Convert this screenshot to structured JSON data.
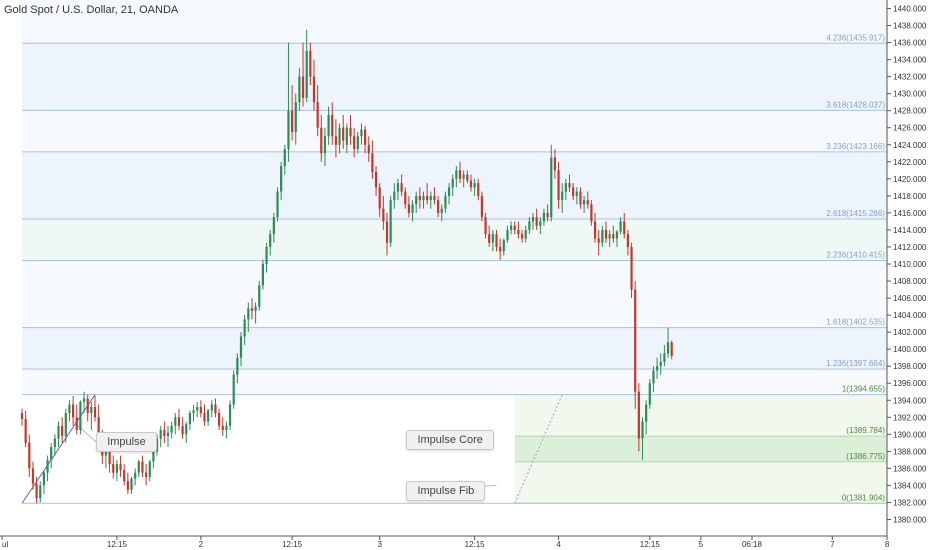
{
  "chart_data": {
    "type": "candlestick",
    "title": "Gold Spot / U.S. Dollar, 21, OANDA",
    "ylim": [
      1379,
      1441
    ],
    "y_ticks": [
      1380,
      1382,
      1384,
      1386,
      1388,
      1390,
      1392,
      1394,
      1396,
      1398,
      1400,
      1402,
      1404,
      1406,
      1408,
      1410,
      1412,
      1414,
      1416,
      1418,
      1420,
      1422,
      1424,
      1426,
      1428,
      1430,
      1432,
      1434,
      1436,
      1438,
      1440
    ],
    "y_tick_labels": [
      "1380.000",
      "1382.000",
      "1384.000",
      "1386.000",
      "1388.000",
      "1390.000",
      "1392.000",
      "1394.000",
      "1396.000",
      "1398.000",
      "1400.000",
      "1402.000",
      "1404.000",
      "1406.000",
      "1408.000",
      "1410.000",
      "1412.000",
      "1414.000",
      "1416.000",
      "1418.000",
      "1420.000",
      "1422.000",
      "1424.000",
      "1426.000",
      "1428.000",
      "1430.000",
      "1432.000",
      "1434.000",
      "1436.000",
      "1438.000",
      "1440.000"
    ],
    "x_ticks": [
      {
        "label": "ul",
        "bar": 0
      },
      {
        "label": "12:15",
        "bar": 26
      },
      {
        "label": "2",
        "bar": 49
      },
      {
        "label": "12:15",
        "bar": 74
      },
      {
        "label": "3",
        "bar": 98
      },
      {
        "label": "12:15",
        "bar": 124
      },
      {
        "label": "4",
        "bar": 147
      },
      {
        "label": "12:15",
        "bar": 172
      },
      {
        "label": "5",
        "bar": 186
      },
      {
        "label": "06:18",
        "bar": 200
      },
      {
        "label": "7",
        "bar": 222
      },
      {
        "label": "8",
        "bar": 237
      }
    ],
    "fib_levels": [
      {
        "ratio": "4.236",
        "value": 1435.917,
        "label": "4.236(1435.917)"
      },
      {
        "ratio": "3.618",
        "value": 1428.037,
        "label": "3.618(1428.037)"
      },
      {
        "ratio": "3.236",
        "value": 1423.166,
        "label": "3.236(1423.166)"
      },
      {
        "ratio": "2.618",
        "value": 1415.286,
        "label": "2.618(1415.286)"
      },
      {
        "ratio": "2.236",
        "value": 1410.415,
        "label": "2.236(1410.415)"
      },
      {
        "ratio": "1.618",
        "value": 1402.535,
        "label": "1.618(1402.535)"
      },
      {
        "ratio": "1.236",
        "value": 1397.664,
        "label": "1.236(1397.664)"
      }
    ],
    "fib_box_levels": [
      {
        "value": 1394.655,
        "ratio_label": "1",
        "value_label": "(1394.655)"
      },
      {
        "value": 1389.784,
        "ratio_label": "",
        "value_label": "(1389.784)"
      },
      {
        "value": 1386.775,
        "ratio_label": "",
        "value_label": "(1386.775)"
      },
      {
        "value": 1381.904,
        "ratio_label": "0",
        "value_label": "(1381.904)"
      }
    ],
    "impulse_line": {
      "from": [
        0,
        1381.904
      ],
      "to": [
        20,
        1394.655
      ]
    },
    "fib_trend_line": {
      "from": [
        135,
        1381.904
      ],
      "to": [
        148,
        1394.655
      ]
    },
    "box_start_bar": 135,
    "annotations": [
      {
        "text": "Impulse",
        "bar": 28,
        "value": 1389.1
      },
      {
        "text": "Impulse Core",
        "bar": 113,
        "value": 1389.3
      },
      {
        "text": "Impulse Fib",
        "bar": 113,
        "value": 1383.3
      }
    ],
    "candles": [
      [
        1392.5,
        1393.0,
        1391.0,
        1391.8
      ],
      [
        1391.8,
        1392.8,
        1388.5,
        1389.0
      ],
      [
        1389.0,
        1390.0,
        1385.0,
        1386.0
      ],
      [
        1386.0,
        1386.8,
        1383.5,
        1384.2
      ],
      [
        1384.2,
        1385.0,
        1381.9,
        1382.5
      ],
      [
        1382.5,
        1384.5,
        1382.0,
        1384.0
      ],
      [
        1384.0,
        1385.8,
        1383.0,
        1385.5
      ],
      [
        1385.5,
        1387.5,
        1384.5,
        1387.0
      ],
      [
        1387.0,
        1389.0,
        1386.0,
        1388.5
      ],
      [
        1388.5,
        1390.0,
        1387.5,
        1389.5
      ],
      [
        1389.5,
        1391.5,
        1388.5,
        1391.0
      ],
      [
        1391.0,
        1392.0,
        1389.0,
        1389.8
      ],
      [
        1389.8,
        1393.0,
        1389.0,
        1392.5
      ],
      [
        1392.5,
        1394.0,
        1391.5,
        1393.5
      ],
      [
        1393.5,
        1394.5,
        1391.0,
        1392.0
      ],
      [
        1392.0,
        1393.5,
        1390.0,
        1390.5
      ],
      [
        1390.5,
        1394.0,
        1390.0,
        1393.8
      ],
      [
        1393.8,
        1395.0,
        1392.5,
        1394.2
      ],
      [
        1394.2,
        1394.66,
        1391.5,
        1392.5
      ],
      [
        1392.5,
        1393.8,
        1390.5,
        1393.2
      ],
      [
        1393.2,
        1394.5,
        1391.5,
        1392.0
      ],
      [
        1392.0,
        1393.5,
        1389.0,
        1389.5
      ],
      [
        1389.5,
        1390.5,
        1386.5,
        1387.5
      ],
      [
        1387.5,
        1389.0,
        1386.0,
        1388.0
      ],
      [
        1388.0,
        1389.0,
        1385.5,
        1386.5
      ],
      [
        1386.5,
        1387.5,
        1384.8,
        1385.5
      ],
      [
        1385.5,
        1387.0,
        1384.5,
        1386.5
      ],
      [
        1386.5,
        1387.5,
        1385.0,
        1385.8
      ],
      [
        1385.8,
        1386.5,
        1384.0,
        1384.5
      ],
      [
        1384.5,
        1385.5,
        1383.0,
        1383.5
      ],
      [
        1383.5,
        1385.0,
        1383.0,
        1384.8
      ],
      [
        1384.8,
        1386.0,
        1384.0,
        1385.5
      ],
      [
        1385.5,
        1387.0,
        1385.0,
        1386.8
      ],
      [
        1386.8,
        1387.5,
        1385.0,
        1385.5
      ],
      [
        1385.5,
        1386.5,
        1384.0,
        1385.0
      ],
      [
        1385.0,
        1387.0,
        1384.5,
        1386.8
      ],
      [
        1386.8,
        1388.5,
        1386.0,
        1388.0
      ],
      [
        1388.0,
        1390.0,
        1387.5,
        1389.5
      ],
      [
        1389.5,
        1391.0,
        1388.5,
        1390.5
      ],
      [
        1390.5,
        1391.5,
        1389.0,
        1389.8
      ],
      [
        1389.8,
        1391.0,
        1388.5,
        1390.2
      ],
      [
        1390.2,
        1391.5,
        1389.5,
        1391.0
      ],
      [
        1391.0,
        1392.5,
        1390.0,
        1392.0
      ],
      [
        1392.0,
        1393.0,
        1390.5,
        1391.0
      ],
      [
        1391.0,
        1392.0,
        1389.5,
        1390.0
      ],
      [
        1390.0,
        1391.5,
        1389.0,
        1391.2
      ],
      [
        1391.2,
        1392.8,
        1390.5,
        1392.5
      ],
      [
        1392.5,
        1393.5,
        1391.5,
        1392.8
      ],
      [
        1392.8,
        1393.8,
        1392.0,
        1393.2
      ],
      [
        1393.2,
        1394.0,
        1392.0,
        1392.5
      ],
      [
        1392.5,
        1393.5,
        1391.0,
        1391.5
      ],
      [
        1391.5,
        1393.0,
        1391.0,
        1392.8
      ],
      [
        1392.8,
        1394.0,
        1392.0,
        1393.5
      ],
      [
        1393.5,
        1394.2,
        1392.0,
        1392.5
      ],
      [
        1392.5,
        1393.0,
        1390.5,
        1391.0
      ],
      [
        1391.0,
        1392.0,
        1389.8,
        1390.5
      ],
      [
        1390.5,
        1391.5,
        1389.5,
        1391.0
      ],
      [
        1391.0,
        1394.0,
        1390.5,
        1393.5
      ],
      [
        1393.5,
        1397.5,
        1393.0,
        1397.0
      ],
      [
        1397.0,
        1399.5,
        1396.0,
        1399.0
      ],
      [
        1399.0,
        1402.0,
        1398.0,
        1401.5
      ],
      [
        1401.5,
        1404.0,
        1400.5,
        1403.5
      ],
      [
        1403.5,
        1405.5,
        1402.0,
        1404.8
      ],
      [
        1404.8,
        1406.0,
        1403.5,
        1404.5
      ],
      [
        1404.5,
        1405.5,
        1403.0,
        1405.0
      ],
      [
        1405.0,
        1408.0,
        1404.5,
        1407.5
      ],
      [
        1407.5,
        1410.5,
        1407.0,
        1410.0
      ],
      [
        1410.0,
        1412.5,
        1409.0,
        1412.0
      ],
      [
        1412.0,
        1414.0,
        1411.0,
        1413.5
      ],
      [
        1413.5,
        1416.0,
        1412.5,
        1415.5
      ],
      [
        1415.5,
        1419.0,
        1415.0,
        1418.5
      ],
      [
        1418.5,
        1422.0,
        1417.5,
        1421.5
      ],
      [
        1421.5,
        1424.0,
        1420.5,
        1423.5
      ],
      [
        1423.5,
        1436.0,
        1422.0,
        1428.0
      ],
      [
        1428.0,
        1431.0,
        1424.5,
        1425.5
      ],
      [
        1425.5,
        1430.0,
        1424.0,
        1429.0
      ],
      [
        1429.0,
        1433.0,
        1428.0,
        1432.0
      ],
      [
        1432.0,
        1436.0,
        1428.5,
        1429.5
      ],
      [
        1429.5,
        1437.5,
        1429.0,
        1435.0
      ],
      [
        1435.0,
        1436.0,
        1431.0,
        1432.0
      ],
      [
        1432.0,
        1434.0,
        1428.0,
        1429.0
      ],
      [
        1429.0,
        1431.0,
        1425.0,
        1426.0
      ],
      [
        1426.0,
        1427.5,
        1422.0,
        1423.0
      ],
      [
        1423.0,
        1426.0,
        1421.5,
        1425.0
      ],
      [
        1425.0,
        1428.5,
        1424.0,
        1427.5
      ],
      [
        1427.5,
        1429.0,
        1424.0,
        1425.0
      ],
      [
        1425.0,
        1427.0,
        1422.5,
        1424.0
      ],
      [
        1424.0,
        1426.5,
        1423.0,
        1426.0
      ],
      [
        1426.0,
        1427.5,
        1423.5,
        1424.5
      ],
      [
        1424.0,
        1426.5,
        1423.0,
        1426.0
      ],
      [
        1426.0,
        1427.5,
        1424.0,
        1425.0
      ],
      [
        1425.0,
        1426.0,
        1422.5,
        1423.5
      ],
      [
        1423.5,
        1425.5,
        1423.0,
        1425.0
      ],
      [
        1425.0,
        1426.5,
        1424.0,
        1425.8
      ],
      [
        1425.8,
        1426.2,
        1423.0,
        1424.0
      ],
      [
        1424.0,
        1425.0,
        1422.0,
        1423.0
      ],
      [
        1423.0,
        1424.5,
        1420.0,
        1420.8
      ],
      [
        1420.8,
        1421.5,
        1418.0,
        1419.0
      ],
      [
        1419.0,
        1419.5,
        1415.5,
        1416.5
      ],
      [
        1416.5,
        1418.0,
        1414.0,
        1415.0
      ],
      [
        1415.0,
        1416.0,
        1411.0,
        1412.5
      ],
      [
        1412.5,
        1418.0,
        1412.0,
        1417.5
      ],
      [
        1417.5,
        1419.5,
        1416.5,
        1418.5
      ],
      [
        1418.5,
        1420.0,
        1417.5,
        1419.5
      ],
      [
        1419.5,
        1420.5,
        1418.0,
        1418.5
      ],
      [
        1418.5,
        1419.0,
        1416.5,
        1417.0
      ],
      [
        1417.0,
        1418.0,
        1415.5,
        1416.0
      ],
      [
        1416.0,
        1417.5,
        1415.0,
        1417.0
      ],
      [
        1417.0,
        1418.5,
        1416.0,
        1418.0
      ],
      [
        1418.0,
        1419.0,
        1416.5,
        1417.5
      ],
      [
        1417.5,
        1418.5,
        1416.5,
        1418.0
      ],
      [
        1418.0,
        1419.5,
        1417.0,
        1417.5
      ],
      [
        1417.5,
        1418.5,
        1416.5,
        1418.0
      ],
      [
        1418.0,
        1419.0,
        1417.0,
        1417.5
      ],
      [
        1417.5,
        1418.0,
        1415.5,
        1416.0
      ],
      [
        1416.0,
        1417.0,
        1415.0,
        1416.5
      ],
      [
        1416.5,
        1418.5,
        1416.0,
        1418.0
      ],
      [
        1418.0,
        1419.5,
        1417.0,
        1419.0
      ],
      [
        1419.0,
        1420.5,
        1418.0,
        1420.0
      ],
      [
        1420.0,
        1421.5,
        1419.0,
        1421.0
      ],
      [
        1421.0,
        1422.0,
        1419.5,
        1420.0
      ],
      [
        1420.0,
        1421.0,
        1419.0,
        1420.5
      ],
      [
        1420.5,
        1421.0,
        1419.5,
        1419.8
      ],
      [
        1419.8,
        1420.5,
        1418.5,
        1419.0
      ],
      [
        1419.0,
        1420.0,
        1418.0,
        1419.5
      ],
      [
        1419.5,
        1420.0,
        1417.5,
        1418.0
      ],
      [
        1418.0,
        1418.5,
        1415.0,
        1415.5
      ],
      [
        1415.5,
        1416.0,
        1413.0,
        1413.5
      ],
      [
        1413.5,
        1414.5,
        1412.0,
        1412.5
      ],
      [
        1412.5,
        1414.0,
        1411.5,
        1413.5
      ],
      [
        1413.5,
        1414.0,
        1411.5,
        1412.0
      ],
      [
        1412.0,
        1413.0,
        1410.5,
        1411.5
      ],
      [
        1411.5,
        1413.0,
        1411.0,
        1412.8
      ],
      [
        1412.8,
        1414.5,
        1412.5,
        1414.0
      ],
      [
        1414.0,
        1415.0,
        1413.5,
        1414.5
      ],
      [
        1414.5,
        1415.0,
        1413.5,
        1414.0
      ],
      [
        1414.0,
        1415.0,
        1413.0,
        1413.5
      ],
      [
        1413.5,
        1414.0,
        1412.5,
        1413.0
      ],
      [
        1413.0,
        1414.5,
        1412.5,
        1414.0
      ],
      [
        1414.0,
        1415.5,
        1413.5,
        1415.0
      ],
      [
        1415.0,
        1416.0,
        1414.0,
        1415.5
      ],
      [
        1415.5,
        1416.5,
        1414.0,
        1414.5
      ],
      [
        1414.5,
        1415.5,
        1413.5,
        1415.0
      ],
      [
        1415.0,
        1416.5,
        1414.5,
        1416.0
      ],
      [
        1416.0,
        1417.0,
        1415.0,
        1415.5
      ],
      [
        1415.5,
        1424.0,
        1415.0,
        1422.5
      ],
      [
        1422.5,
        1423.5,
        1420.0,
        1421.0
      ],
      [
        1421.0,
        1422.0,
        1416.5,
        1417.5
      ],
      [
        1417.5,
        1419.5,
        1416.0,
        1418.5
      ],
      [
        1418.5,
        1420.0,
        1417.5,
        1419.5
      ],
      [
        1419.5,
        1420.5,
        1418.5,
        1419.0
      ],
      [
        1419.0,
        1419.5,
        1417.5,
        1418.0
      ],
      [
        1418.0,
        1419.0,
        1417.0,
        1418.5
      ],
      [
        1418.5,
        1419.0,
        1416.5,
        1417.0
      ],
      [
        1417.0,
        1418.0,
        1416.0,
        1417.5
      ],
      [
        1417.5,
        1418.5,
        1416.5,
        1417.0
      ],
      [
        1417.0,
        1417.5,
        1414.5,
        1415.0
      ],
      [
        1415.0,
        1416.0,
        1412.5,
        1413.0
      ],
      [
        1413.0,
        1414.0,
        1411.0,
        1412.5
      ],
      [
        1412.5,
        1414.5,
        1412.0,
        1414.0
      ],
      [
        1414.0,
        1415.0,
        1412.5,
        1413.0
      ],
      [
        1413.0,
        1414.0,
        1412.0,
        1413.5
      ],
      [
        1413.5,
        1414.5,
        1412.5,
        1413.0
      ],
      [
        1413.0,
        1414.0,
        1412.0,
        1413.8
      ],
      [
        1413.8,
        1415.5,
        1413.5,
        1415.0
      ],
      [
        1415.0,
        1416.0,
        1413.0,
        1413.5
      ],
      [
        1413.5,
        1414.0,
        1411.0,
        1412.0
      ],
      [
        1412.0,
        1412.5,
        1406.0,
        1407.0
      ],
      [
        1407.0,
        1408.0,
        1393.0,
        1395.0
      ],
      [
        1395.0,
        1396.0,
        1388.0,
        1389.5
      ],
      [
        1389.5,
        1392.0,
        1387.0,
        1391.5
      ],
      [
        1391.5,
        1394.0,
        1390.0,
        1393.5
      ],
      [
        1393.5,
        1396.5,
        1393.0,
        1396.0
      ],
      [
        1396.0,
        1398.0,
        1395.0,
        1397.5
      ],
      [
        1397.5,
        1399.0,
        1396.5,
        1398.0
      ],
      [
        1398.0,
        1399.5,
        1397.0,
        1398.5
      ],
      [
        1398.5,
        1400.5,
        1398.0,
        1399.5
      ],
      [
        1399.5,
        1402.5,
        1399.0,
        1400.8
      ],
      [
        1400.8,
        1401.0,
        1398.8,
        1399.2
      ]
    ]
  }
}
